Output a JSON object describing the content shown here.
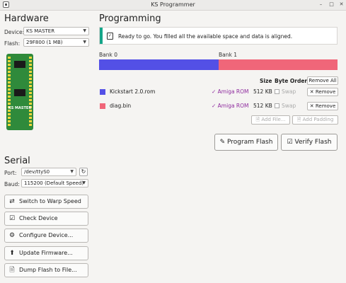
{
  "window": {
    "title": "KS Programmer",
    "icons": [
      "app-icon",
      "minimize-icon",
      "maximize-icon",
      "close-icon"
    ]
  },
  "hardware": {
    "heading": "Hardware",
    "device_label": "Device:",
    "device_value": "KS MASTER",
    "flash_label": "Flash:",
    "flash_value": "29F800 (1 MB)",
    "board_text": "KS MASTER"
  },
  "serial": {
    "heading": "Serial",
    "port_label": "Port:",
    "port_value": "/dev/ttyS0",
    "baud_label": "Baud:",
    "baud_value": "115200 (Default Speed)"
  },
  "actions": [
    {
      "label": "Switch to Warp Speed",
      "icon": "warp-icon"
    },
    {
      "label": "Check Device",
      "icon": "checkbox-icon"
    },
    {
      "label": "Configure Device...",
      "icon": "gear-icon"
    },
    {
      "label": "Update Firmware...",
      "icon": "upload-icon"
    },
    {
      "label": "Dump Flash to File...",
      "icon": "document-icon"
    }
  ],
  "programming": {
    "heading": "Programming",
    "notice": "Ready to go. You filled all the available space and data is aligned.",
    "bank0_label": "Bank 0",
    "bank1_label": "Bank 1",
    "bank0_color": "#5350e6",
    "bank1_color": "#f06679",
    "columns": {
      "size": "Size",
      "byte_order": "Byte Order"
    },
    "remove_all": "Remove All",
    "files": [
      {
        "name": "Kickstart 2.0.rom",
        "color": "#5350e6",
        "type": "Amiga ROM",
        "size": "512 KB",
        "swap_label": "Swap",
        "remove_label": "Remove"
      },
      {
        "name": "diag.bin",
        "color": "#f06679",
        "type": "Amiga ROM",
        "size": "512 KB",
        "swap_label": "Swap",
        "remove_label": "Remove"
      }
    ],
    "add_file": "Add File...",
    "add_padding": "Add Padding",
    "program_flash": "Program Flash",
    "verify_flash": "Verify Flash"
  }
}
